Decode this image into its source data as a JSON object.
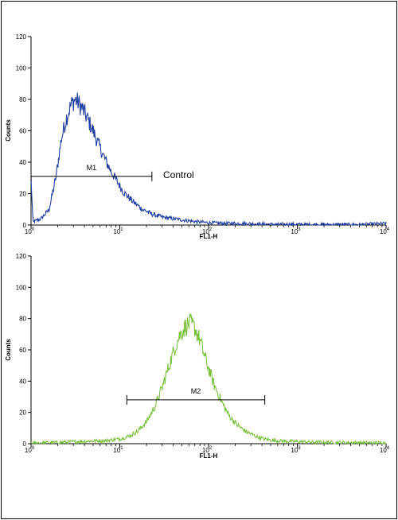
{
  "chart_data": [
    {
      "type": "line",
      "xscale": "log",
      "xlim": [
        1,
        10000
      ],
      "ylim": [
        0,
        120
      ],
      "xlabel": "FL1-H",
      "ylabel": "Counts",
      "xticks": [
        1,
        10,
        100,
        1000,
        10000
      ],
      "xtick_labels": [
        {
          "base": "10",
          "exp": "0"
        },
        {
          "base": "10",
          "exp": "1"
        },
        {
          "base": "10",
          "exp": "2"
        },
        {
          "base": "10",
          "exp": "3"
        },
        {
          "base": "10",
          "exp": "4"
        }
      ],
      "yticks": [
        "0",
        "20",
        "40",
        "60",
        "80",
        "100",
        "120"
      ],
      "color": "#1f3fa0",
      "series": [
        {
          "x": [
            1.0,
            1.05,
            1.3,
            1.6,
            1.9,
            2.2,
            2.5,
            2.8,
            3.1,
            3.4,
            3.8,
            4.3,
            5.0,
            5.8,
            6.8,
            8.0,
            9.5,
            11,
            14,
            18,
            23,
            30,
            40,
            55,
            75,
            100,
            150,
            250,
            500,
            1000,
            2000,
            5000,
            10000
          ],
          "y": [
            30,
            2,
            4,
            10,
            30,
            55,
            68,
            76,
            80,
            78,
            74,
            68,
            60,
            51,
            42,
            34,
            27,
            21,
            15,
            10,
            7,
            5,
            4,
            3,
            2,
            1.5,
            1,
            1,
            0.5,
            0.4,
            0.3,
            0.3,
            1
          ]
        }
      ],
      "markers": [
        {
          "label": "M1",
          "x_start": 1.0,
          "x_end": 23,
          "y": 31
        }
      ],
      "annotation": "Control"
    },
    {
      "type": "line",
      "xscale": "log",
      "xlim": [
        1,
        10000
      ],
      "ylim": [
        0,
        120
      ],
      "xlabel": "FL1-H",
      "ylabel": "Counts",
      "xticks": [
        1,
        10,
        100,
        1000,
        10000
      ],
      "xtick_labels": [
        {
          "base": "10",
          "exp": "0"
        },
        {
          "base": "10",
          "exp": "1"
        },
        {
          "base": "10",
          "exp": "2"
        },
        {
          "base": "10",
          "exp": "3"
        },
        {
          "base": "10",
          "exp": "4"
        }
      ],
      "yticks": [
        "0",
        "20",
        "40",
        "60",
        "80",
        "100",
        "120"
      ],
      "color": "#7dc242",
      "series": [
        {
          "x": [
            1.0,
            2.0,
            4.0,
            7.0,
            10,
            13,
            16,
            20,
            25,
            30,
            36,
            42,
            48,
            55,
            62,
            70,
            80,
            95,
            115,
            140,
            170,
            210,
            260,
            330,
            420,
            550,
            800,
            1500,
            3000,
            10000
          ],
          "y": [
            0.5,
            0.8,
            1.5,
            2,
            3,
            5,
            8,
            14,
            24,
            36,
            50,
            62,
            70,
            75,
            77,
            74,
            66,
            52,
            38,
            27,
            18,
            12,
            8,
            5,
            3,
            2,
            1.5,
            1,
            0.8,
            0.5
          ]
        }
      ],
      "markers": [
        {
          "label": "M2",
          "x_start": 12,
          "x_end": 430,
          "y": 28
        }
      ],
      "annotation": ""
    }
  ]
}
